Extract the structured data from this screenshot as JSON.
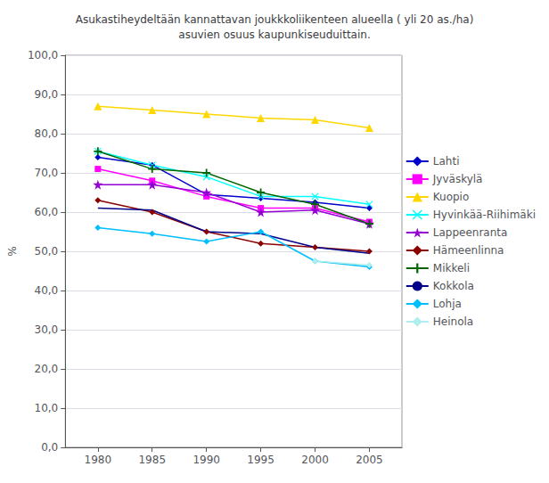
{
  "chart_data": {
    "type": "line",
    "title": "Asukastiheydeltään kannattavan joukkkoliikenteen alueella ( yli 20 as./ha)\nasuvien osuus kaupunkiseuduittain.",
    "ylabel": "%",
    "x": [
      1980,
      1985,
      1990,
      1995,
      2000,
      2005
    ],
    "series": [
      {
        "name": "Lahti",
        "color": "#0000CD",
        "marker": "diamond",
        "values": [
          74.0,
          72.0,
          64.5,
          63.5,
          62.5,
          61.0
        ]
      },
      {
        "name": "Jyväskylä",
        "color": "#FF00FF",
        "marker": "square",
        "values": [
          71.0,
          68.0,
          64.0,
          61.0,
          61.0,
          57.5
        ]
      },
      {
        "name": "Kuopio",
        "color": "#FFD700",
        "marker": "triangle",
        "values": [
          87.0,
          86.0,
          85.0,
          84.0,
          83.5,
          81.5
        ]
      },
      {
        "name": "Hyvinkää-Riihimäki",
        "color": "#00FFFF",
        "marker": "x",
        "values": [
          75.5,
          72.0,
          69.0,
          64.0,
          64.0,
          62.0
        ]
      },
      {
        "name": "Lappeenranta",
        "color": "#9400D3",
        "marker": "star",
        "values": [
          67.0,
          67.0,
          65.0,
          60.0,
          60.5,
          57.0
        ]
      },
      {
        "name": "Hämeenlinna",
        "color": "#8B0000",
        "marker": "diamond",
        "values": [
          63.0,
          60.0,
          55.0,
          52.0,
          51.0,
          50.0
        ]
      },
      {
        "name": "Mikkeli",
        "color": "#006400",
        "marker": "plus",
        "values": [
          75.5,
          71.0,
          70.0,
          65.0,
          62.0,
          57.0
        ]
      },
      {
        "name": "Kokkola",
        "color": "#00008B",
        "marker": "none",
        "values": [
          61.0,
          60.5,
          55.0,
          54.5,
          51.0,
          49.5
        ]
      },
      {
        "name": "Lohja",
        "color": "#00BFFF",
        "marker": "diamond",
        "values": [
          56.0,
          54.5,
          52.5,
          55.0,
          47.5,
          46.0
        ]
      },
      {
        "name": "Heinola",
        "color": "#AFEEEE",
        "marker": "diamond",
        "values": [
          null,
          null,
          null,
          null,
          47.5,
          46.5
        ]
      }
    ],
    "xlim": [
      1977,
      2008
    ],
    "xticks": [
      1980,
      1985,
      1990,
      1995,
      2000,
      2005
    ],
    "ylim": [
      0,
      100
    ],
    "yticks": [
      {
        "value": 0,
        "label": "0,0"
      },
      {
        "value": 10,
        "label": "10,0"
      },
      {
        "value": 20,
        "label": "20,0"
      },
      {
        "value": 30,
        "label": "30,0"
      },
      {
        "value": 40,
        "label": "40,0"
      },
      {
        "value": 50,
        "label": "50,0"
      },
      {
        "value": 60,
        "label": "60,0"
      },
      {
        "value": 70,
        "label": "70,0"
      },
      {
        "value": 80,
        "label": "80,0"
      },
      {
        "value": 90,
        "label": "90,0"
      },
      {
        "value": 100,
        "label": "100,0"
      }
    ],
    "grid": true,
    "legend": "right"
  }
}
